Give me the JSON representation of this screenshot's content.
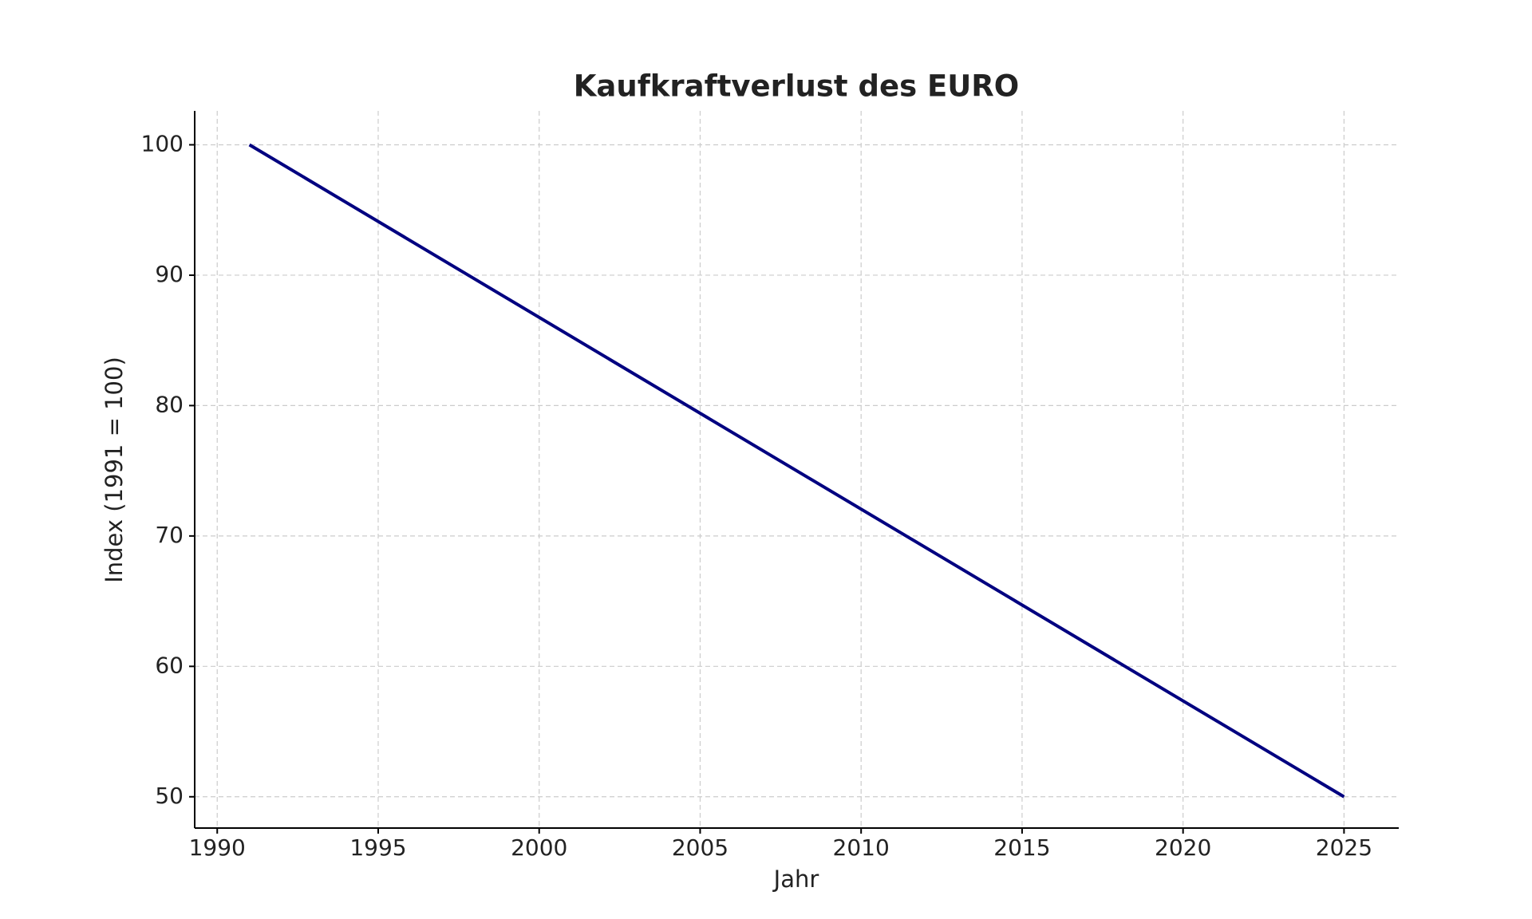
{
  "chart_data": {
    "type": "line",
    "title": "Kaufkraftverlust des EURO",
    "x_label": "Jahr",
    "y_label": "Index (1991 = 100)",
    "x": [
      1991,
      2025
    ],
    "series": [
      {
        "color": "#000080",
        "values": [
          100,
          50
        ]
      }
    ],
    "xlim": [
      1989.3,
      2026.7
    ],
    "xticks": [
      1990,
      1995,
      2000,
      2005,
      2010,
      2015,
      2020,
      2025
    ],
    "ylim": [
      47.6,
      102.6
    ],
    "yticks": [
      50,
      60,
      70,
      80,
      90,
      100
    ],
    "grid": true
  }
}
